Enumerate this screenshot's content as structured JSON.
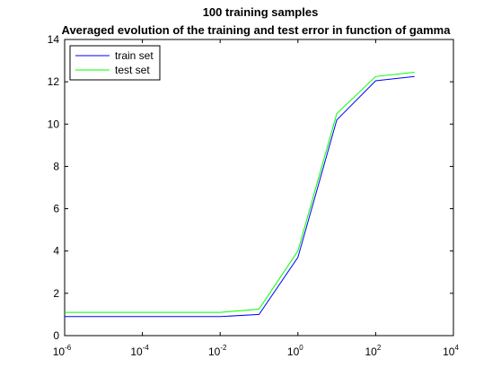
{
  "chart_data": {
    "type": "line",
    "title": "100 training samples",
    "subtitle": "Averaged evolution of the training and test error in function of gamma",
    "xlabel": "",
    "ylabel": "",
    "xscale": "log",
    "xlim": [
      1e-06,
      10000
    ],
    "ylim": [
      0,
      14
    ],
    "grid": false,
    "legend_position": "top-left",
    "x": [
      1e-06,
      0.01,
      0.1,
      1,
      10,
      100,
      1000
    ],
    "series": [
      {
        "name": "train set",
        "color": "#0000ff",
        "values": [
          0.9,
          0.9,
          1.0,
          3.7,
          10.2,
          12.05,
          12.25
        ]
      },
      {
        "name": "test set",
        "color": "#00ff00",
        "values": [
          1.1,
          1.1,
          1.25,
          4.0,
          10.5,
          12.25,
          12.45
        ]
      }
    ],
    "x_ticks": [
      {
        "base": "10",
        "exp": "-6",
        "value": 1e-06
      },
      {
        "base": "10",
        "exp": "-4",
        "value": 0.0001
      },
      {
        "base": "10",
        "exp": "-2",
        "value": 0.01
      },
      {
        "base": "10",
        "exp": "0",
        "value": 1
      },
      {
        "base": "10",
        "exp": "2",
        "value": 100
      },
      {
        "base": "10",
        "exp": "4",
        "value": 10000
      }
    ],
    "y_ticks": [
      {
        "label": "0",
        "value": 0
      },
      {
        "label": "2",
        "value": 2
      },
      {
        "label": "4",
        "value": 4
      },
      {
        "label": "6",
        "value": 6
      },
      {
        "label": "8",
        "value": 8
      },
      {
        "label": "10",
        "value": 10
      },
      {
        "label": "12",
        "value": 12
      },
      {
        "label": "14",
        "value": 14
      }
    ]
  }
}
